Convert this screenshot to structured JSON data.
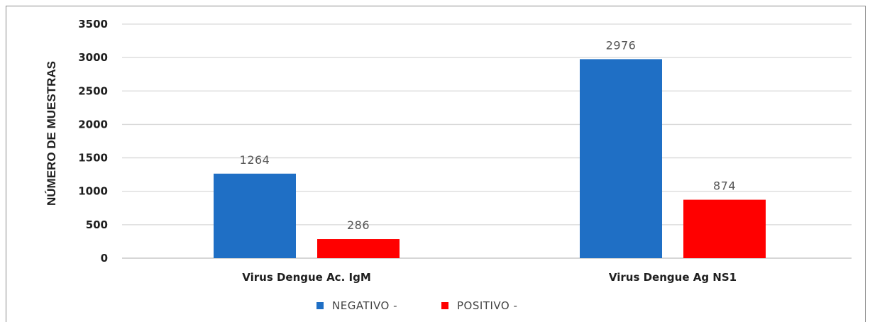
{
  "chart_data": {
    "type": "bar",
    "categories": [
      "Virus Dengue Ac. IgM",
      "Virus Dengue Ag NS1"
    ],
    "series": [
      {
        "name": "NEGATIVO -",
        "color": "#1f6fc5",
        "values": [
          1264,
          2976
        ]
      },
      {
        "name": "POSITIVO -",
        "color": "#ff0000",
        "values": [
          286,
          874
        ]
      }
    ],
    "ylabel": "NÚMERO DE MUESTRAS",
    "ylim": [
      0,
      3500
    ],
    "yticks": [
      0,
      500,
      1000,
      1500,
      2000,
      2500,
      3000,
      3500
    ],
    "grid": true,
    "legend": "bottom"
  }
}
